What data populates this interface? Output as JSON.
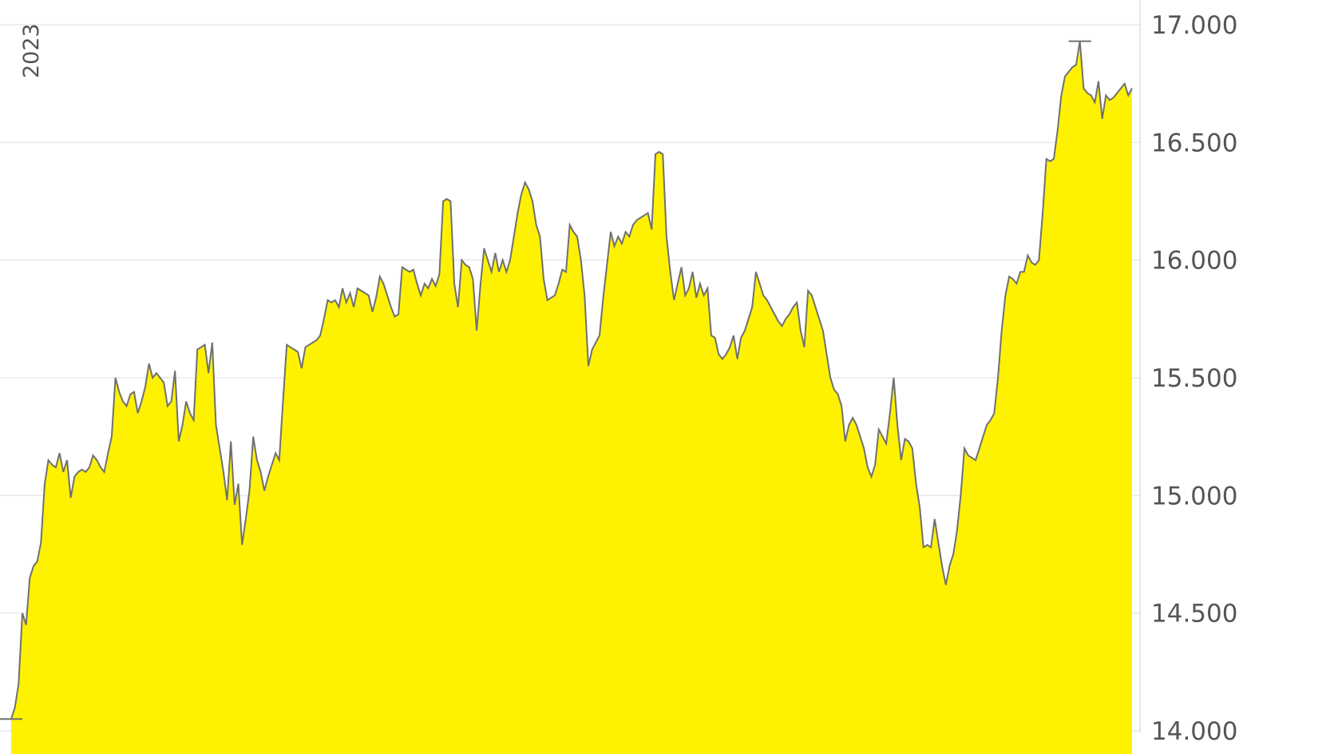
{
  "chart_data": {
    "type": "area",
    "year_label": "2023",
    "ylim": [
      14000,
      17000
    ],
    "y_ticks": [
      14000,
      14500,
      15000,
      15500,
      16000,
      16500,
      17000
    ],
    "y_tick_labels": [
      "14.000",
      "14.500",
      "15.000",
      "15.500",
      "16.000",
      "16.500",
      "17.000"
    ],
    "grid": true,
    "area_color": "#fff200",
    "line_color": "#707070",
    "marker_color": "#707070",
    "min_marker": 14050,
    "max_marker": 16930,
    "values": [
      14050,
      14100,
      14200,
      14500,
      14450,
      14650,
      14700,
      14720,
      14800,
      15050,
      15150,
      15130,
      15120,
      15180,
      15100,
      15150,
      14990,
      15080,
      15100,
      15110,
      15100,
      15120,
      15170,
      15150,
      15120,
      15100,
      15180,
      15250,
      15500,
      15440,
      15400,
      15380,
      15430,
      15440,
      15350,
      15400,
      15460,
      15560,
      15500,
      15520,
      15500,
      15480,
      15380,
      15400,
      15530,
      15230,
      15300,
      15400,
      15350,
      15320,
      15620,
      15630,
      15640,
      15520,
      15650,
      15300,
      15200,
      15100,
      14980,
      15230,
      14960,
      15050,
      14790,
      14900,
      15020,
      15250,
      15150,
      15100,
      15020,
      15080,
      15130,
      15180,
      15150,
      15400,
      15640,
      15630,
      15620,
      15610,
      15540,
      15630,
      15640,
      15650,
      15660,
      15680,
      15750,
      15830,
      15820,
      15830,
      15800,
      15880,
      15820,
      15860,
      15800,
      15880,
      15870,
      15860,
      15850,
      15780,
      15840,
      15930,
      15900,
      15850,
      15800,
      15760,
      15770,
      15970,
      15960,
      15950,
      15960,
      15900,
      15850,
      15900,
      15880,
      15920,
      15890,
      15940,
      16250,
      16260,
      16250,
      15900,
      15800,
      16000,
      15980,
      15970,
      15920,
      15700,
      15890,
      16050,
      16000,
      15950,
      16030,
      15950,
      16000,
      15950,
      16000,
      16100,
      16200,
      16280,
      16330,
      16300,
      16250,
      16150,
      16100,
      15920,
      15830,
      15840,
      15850,
      15900,
      15960,
      15950,
      16150,
      16120,
      16100,
      16000,
      15850,
      15550,
      15620,
      15650,
      15680,
      15840,
      15980,
      16120,
      16060,
      16100,
      16070,
      16120,
      16100,
      16150,
      16170,
      16180,
      16190,
      16200,
      16130,
      16450,
      16460,
      16450,
      16100,
      15950,
      15830,
      15900,
      15970,
      15850,
      15880,
      15950,
      15840,
      15900,
      15850,
      15880,
      15680,
      15670,
      15600,
      15580,
      15600,
      15630,
      15680,
      15580,
      15670,
      15700,
      15750,
      15800,
      15950,
      15900,
      15850,
      15830,
      15800,
      15770,
      15740,
      15720,
      15750,
      15770,
      15800,
      15820,
      15700,
      15630,
      15870,
      15850,
      15800,
      15750,
      15700,
      15600,
      15500,
      15450,
      15430,
      15380,
      15230,
      15300,
      15330,
      15300,
      15250,
      15200,
      15120,
      15080,
      15130,
      15280,
      15250,
      15220,
      15350,
      15500,
      15300,
      15150,
      15240,
      15230,
      15200,
      15050,
      14950,
      14780,
      14790,
      14780,
      14900,
      14800,
      14700,
      14620,
      14700,
      14750,
      14850,
      15000,
      15200,
      15170,
      15160,
      15150,
      15200,
      15250,
      15300,
      15320,
      15350,
      15500,
      15700,
      15850,
      15930,
      15920,
      15900,
      15950,
      15950,
      16020,
      15990,
      15980,
      16000,
      16200,
      16430,
      16420,
      16430,
      16550,
      16700,
      16780,
      16800,
      16820,
      16830,
      16930,
      16730,
      16710,
      16700,
      16670,
      16760,
      16600,
      16700,
      16680,
      16690,
      16710,
      16730,
      16750,
      16700,
      16730
    ]
  }
}
